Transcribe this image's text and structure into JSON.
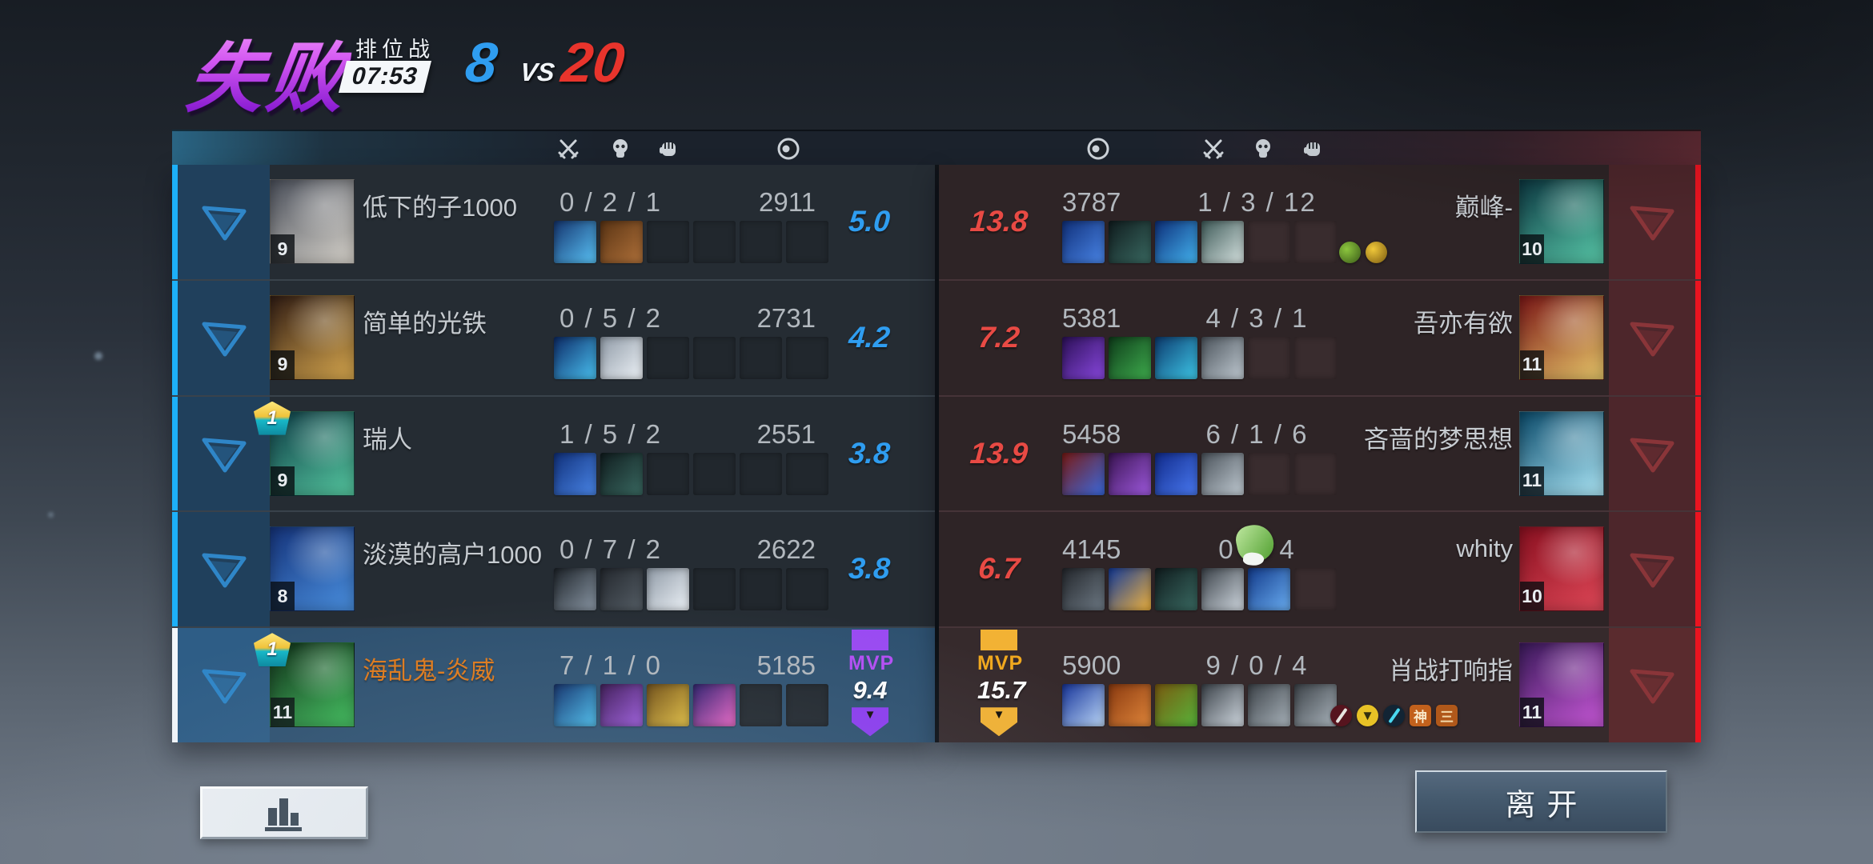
{
  "result_banner": {
    "result": "失败",
    "mode": "排位战",
    "time": "07:53",
    "score_left": "8",
    "vs": "VS",
    "score_right": "20"
  },
  "colors": {
    "score_left": "#2f9df0",
    "score_right": "#e8342c",
    "left_edge": "#1db0f8",
    "left_edge_highlight": "#f2f6fa",
    "right_edge": "#ea1420",
    "left_rating": "#2f9df0",
    "right_rating": "#e84a44",
    "mvp_purple": "#9a4af2",
    "mvp_orange": "#f2b234",
    "left_flag": "#2f86c8",
    "right_flag": "#8a3539",
    "header_icon": "#cdd3d9"
  },
  "header_icons_left": [
    "crossed-swords-icon",
    "skull-icon",
    "fist-icon",
    "coin-icon"
  ],
  "header_icons_right": [
    "coin-icon",
    "crossed-swords-icon",
    "skull-icon",
    "fist-icon"
  ],
  "teams": {
    "left": {
      "players": [
        {
          "name": "低下的子1000",
          "level": "9",
          "kda": "0 / 2 / 1",
          "gold": "2911",
          "rating": "5.0",
          "avatar": "hero-odin-avatar",
          "av1": "#4a4f5a",
          "av2": "#d8d4cc",
          "slots": 6,
          "items": [
            {
              "n": "battle-axe-item",
              "c1": "#14346e",
              "c2": "#5ac4f8"
            },
            {
              "n": "brown-boots-item",
              "c1": "#5a3414",
              "c2": "#b0713a"
            }
          ]
        },
        {
          "name": "简单的光铁",
          "level": "9",
          "kda": "0 / 5 / 2",
          "gold": "2731",
          "rating": "4.2",
          "avatar": "hero-doctor-strange-avatar",
          "av1": "#301c14",
          "av2": "#d8a84e",
          "slots": 6,
          "items": [
            {
              "n": "blue-spell-blade-item",
              "c1": "#0c2a66",
              "c2": "#4ac2f2"
            },
            {
              "n": "white-sneakers-item",
              "c1": "#8f9aa6",
              "c2": "#eef3f8"
            }
          ]
        },
        {
          "name": "瑞人",
          "level": "9",
          "crown": "1",
          "kda": "1 / 5 / 2",
          "gold": "2551",
          "rating": "3.8",
          "avatar": "hero-mantis-avatar",
          "av1": "#0d3a44",
          "av2": "#55c8a0",
          "slots": 6,
          "items": [
            {
              "n": "blue-armor-item",
              "c1": "#10307a",
              "c2": "#4a86e8"
            },
            {
              "n": "dark-claw-item",
              "c1": "#101c1e",
              "c2": "#3a6a62"
            }
          ]
        },
        {
          "name": "淡漠的高户1000",
          "level": "8",
          "kda": "0 / 7 / 2",
          "gold": "2622",
          "rating": "3.8",
          "avatar": "hero-beast-avatar",
          "av1": "#15337a",
          "av2": "#4a90e0",
          "slots": 6,
          "items": [
            {
              "n": "pistol-item",
              "c1": "#1c2228",
              "c2": "#8a97a5"
            },
            {
              "n": "dark-vest-item",
              "c1": "#23272d",
              "c2": "#555e66"
            },
            {
              "n": "white-sneakers-item",
              "c1": "#8f9aa6",
              "c2": "#eef3f8"
            }
          ]
        },
        {
          "name": "海乱鬼-炎威",
          "level": "11",
          "crown": "1",
          "kda": "7 / 1 / 0",
          "gold": "5185",
          "highlighted": true,
          "name_color": "#e07a1a",
          "mvp": {
            "label": "MVP",
            "value": "9.4",
            "color": "#9a4af2",
            "label_color": "#b44ef5",
            "pent_color": "#8c3cf0"
          },
          "avatar": "hero-green-warrior-avatar",
          "av1": "#0e2a16",
          "av2": "#3ec25a",
          "slots": 6,
          "items": [
            {
              "n": "blue-spell-blade-item",
              "c1": "#0c2a66",
              "c2": "#4ac2f2"
            },
            {
              "n": "purple-boots-item",
              "c1": "#3a1452",
              "c2": "#a05ae0"
            },
            {
              "n": "golden-scepter-item",
              "c1": "#6e4a10",
              "c2": "#e8c23e"
            },
            {
              "n": "pink-orb-item",
              "c1": "#281a6a",
              "c2": "#f065c8"
            }
          ]
        }
      ]
    },
    "right": {
      "players": [
        {
          "name": "巅峰-",
          "level": "10",
          "kda": "1 / 3 / 12",
          "gold": "3787",
          "rating": "13.8",
          "avatar": "hero-mantis-avatar",
          "av1": "#0d3a44",
          "av2": "#58c8a8",
          "slots": 6,
          "items": [
            {
              "n": "blue-armor-item",
              "c1": "#10307a",
              "c2": "#4a86e8"
            },
            {
              "n": "dark-claw-item",
              "c1": "#101c1e",
              "c2": "#3a6a62"
            },
            {
              "n": "blue-orb-item",
              "c1": "#0d2f7a",
              "c2": "#44b4f0"
            },
            {
              "n": "silver-teal-armor-item",
              "c1": "#3e5a58",
              "c2": "#d8e4e2"
            }
          ],
          "stickers": [
            {
              "n": "green-plant-sticker",
              "c1": "#8cc63e",
              "c2": "#3a5a18"
            },
            {
              "n": "yellow-cheer-sticker",
              "c1": "#f0c83a",
              "c2": "#7a5a10"
            }
          ]
        },
        {
          "name": "吾亦有欲",
          "level": "11",
          "kda": "4 / 3 / 1",
          "gold": "5381",
          "rating": "7.2",
          "avatar": "hero-longshot-avatar",
          "av1": "#7a1616",
          "av2": "#e8c86a",
          "slots": 6,
          "items": [
            {
              "n": "purple-armor-item",
              "c1": "#2c1058",
              "c2": "#8a48e0"
            },
            {
              "n": "green-boots-item",
              "c1": "#0e3c1a",
              "c2": "#3fae4e"
            },
            {
              "n": "blue-cube-item",
              "c1": "#0c3a6e",
              "c2": "#3ec8e8"
            },
            {
              "n": "grey-stone-item",
              "c1": "#4a525a",
              "c2": "#c2ccd4"
            }
          ]
        },
        {
          "name": "吝啬的梦思想",
          "level": "11",
          "kda": "6 / 1 / 6",
          "gold": "5458",
          "rating": "13.9",
          "avatar": "hero-iceman-avatar",
          "av1": "#0a4a6a",
          "av2": "#aee8f8",
          "slots": 6,
          "items": [
            {
              "n": "red-blue-spider-item",
              "c1": "#7a1a14",
              "c2": "#3a6ae0"
            },
            {
              "n": "purple-boots-item",
              "c1": "#3a1452",
              "c2": "#a05ae0"
            },
            {
              "n": "ice-cube-item",
              "c1": "#102a8a",
              "c2": "#4a7af2"
            },
            {
              "n": "grey-stone-item",
              "c1": "#4a525a",
              "c2": "#c2ccd4"
            }
          ]
        },
        {
          "name": "whity",
          "level": "10",
          "kda_k": "0",
          "kda_a": "4",
          "gold": "4145",
          "rating": "6.7",
          "kda_sticker": {
            "n": "green-leaf-sticker",
            "c1": "#bfe8a0",
            "c2": "#4f9e2e"
          },
          "avatar": "hero-deadpool-avatar",
          "av1": "#8a1020",
          "av2": "#e04858",
          "slots": 6,
          "items": [
            {
              "n": "shotgun-item",
              "c1": "#23262b",
              "c2": "#6e7a85"
            },
            {
              "n": "blue-flame-grapple-item",
              "c1": "#123a9a",
              "c2": "#f2b43e"
            },
            {
              "n": "dark-claw-item",
              "c1": "#101c1e",
              "c2": "#3a6a62"
            },
            {
              "n": "silver-blade-item",
              "c1": "#3a4148",
              "c2": "#d2dae2"
            },
            {
              "n": "blue-bow-item",
              "c1": "#123a8a",
              "c2": "#6aaef2"
            }
          ]
        },
        {
          "name": "肖战打响指",
          "level": "11",
          "kda": "9 / 0 / 4",
          "gold": "5900",
          "tone_light": true,
          "mvp": {
            "label": "MVP",
            "value": "15.7",
            "color": "#f2b234",
            "label_color": "#f0a81e",
            "pent_color": "#f2b234"
          },
          "avatar": "hero-hawkeye-avatar",
          "av1": "#3a1a5a",
          "av2": "#c858d8",
          "slots": 6,
          "items": [
            {
              "n": "blue-bow-item",
              "c1": "#16349a",
              "c2": "#bcd8f8"
            },
            {
              "n": "orange-horn-item",
              "c1": "#8a3a10",
              "c2": "#e0863a"
            },
            {
              "n": "green-gold-bow-item",
              "c1": "#7a5a10",
              "c2": "#57b43a"
            },
            {
              "n": "silver-blade-item",
              "c1": "#3a4148",
              "c2": "#d2dae2"
            },
            {
              "n": "grey-hammer-item",
              "c1": "#3c4248",
              "c2": "#aab4bc"
            },
            {
              "n": "grey-hammer-item",
              "c1": "#3c4248",
              "c2": "#aab4bc"
            }
          ],
          "badges": [
            {
              "n": "red-dagger-badge",
              "shape": "round",
              "bg": "#56141e",
              "fg": "#e8e4e0",
              "g": ""
            },
            {
              "n": "gold-shield-badge",
              "shape": "round",
              "bg": "#e8c226",
              "fg": "#33300e",
              "g": "▼"
            },
            {
              "n": "cyan-bow-badge",
              "shape": "round",
              "bg": "#122434",
              "fg": "#4ad8f0",
              "g": ""
            },
            {
              "n": "shen-badge",
              "shape": "square",
              "bg": "#c2611c",
              "fg": "#f8e8c8",
              "g": "神"
            },
            {
              "n": "bars-badge",
              "shape": "square",
              "bg": "#b0581a",
              "fg": "#f2d8a8",
              "g": "三"
            }
          ]
        }
      ]
    }
  },
  "footer": {
    "leave": "离开",
    "stats_icon": "bar-chart-icon"
  }
}
